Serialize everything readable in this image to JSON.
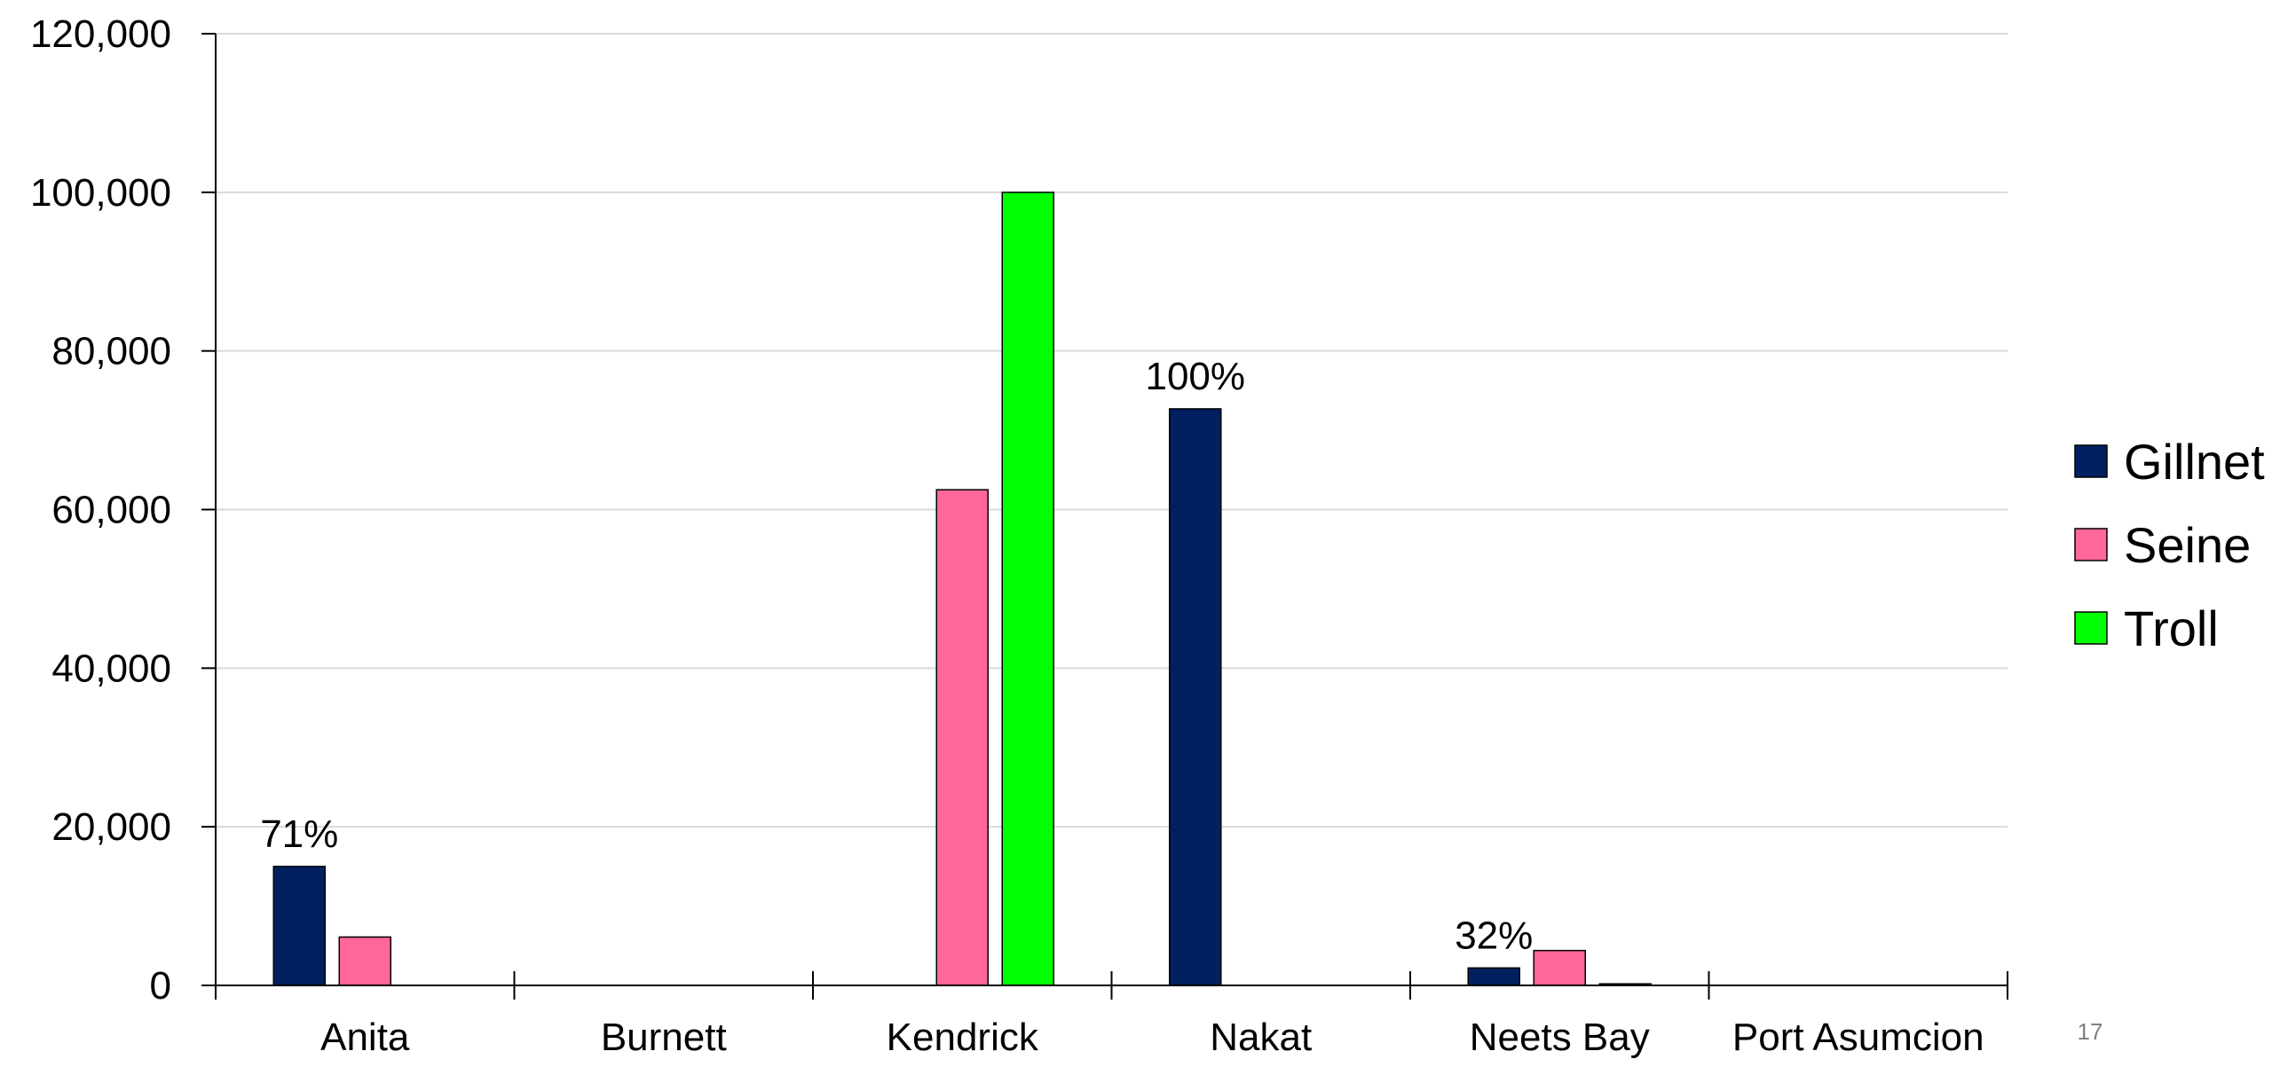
{
  "chart_data": {
    "type": "bar",
    "categories": [
      "Anita",
      "Burnett",
      "Kendrick",
      "Nakat",
      "Neets Bay",
      "Port Asumcion"
    ],
    "series": [
      {
        "name": "Gillnet",
        "color": "#002060",
        "values": [
          15000,
          0,
          0,
          72700,
          2200,
          0
        ]
      },
      {
        "name": "Seine",
        "color": "#FF6699",
        "values": [
          6100,
          0,
          62500,
          0,
          4400,
          0
        ]
      },
      {
        "name": "Troll",
        "color": "#00FF00",
        "values": [
          0,
          0,
          100000,
          0,
          200,
          0
        ]
      }
    ],
    "ylim": [
      0,
      120000
    ],
    "yticks": [
      0,
      20000,
      40000,
      60000,
      80000,
      100000,
      120000
    ],
    "ytick_labels": [
      "0",
      "20,000",
      "40,000",
      "60,000",
      "80,000",
      "100,000",
      "120,000"
    ],
    "annotations": [
      {
        "category": "Anita",
        "text": "71%"
      },
      {
        "category": "Nakat",
        "text": "100%"
      },
      {
        "category": "Neets Bay",
        "text": "32%"
      }
    ],
    "legend": {
      "position": "right",
      "entries": [
        "Gillnet",
        "Seine",
        "Troll"
      ]
    },
    "grid": true,
    "title": "",
    "xlabel": "",
    "ylabel": ""
  },
  "page_number": "17"
}
